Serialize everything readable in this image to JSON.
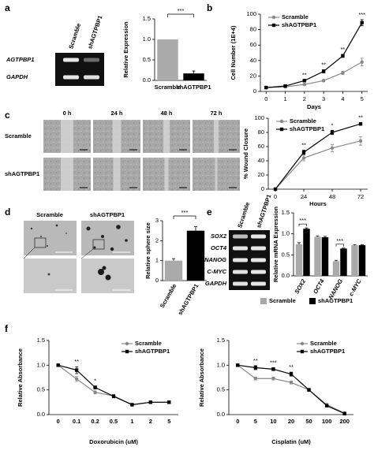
{
  "panels": {
    "a": {
      "letter": "a",
      "gel_columns": [
        "Scramble",
        "shAGTPBP1"
      ],
      "gel_rows": [
        "AGTPBP1",
        "GAPDH"
      ]
    },
    "b": {
      "letter": "b"
    },
    "c": {
      "letter": "c",
      "columns": [
        "0 h",
        "24 h",
        "48 h",
        "72 h"
      ],
      "rows": [
        "Scramble",
        "shAGTPBP1"
      ]
    },
    "d": {
      "letter": "d",
      "columns": [
        "Scramble",
        "shAGTPBP1"
      ]
    },
    "e": {
      "letter": "e",
      "gel_columns": [
        "Scramble",
        "shAGTPBP1"
      ],
      "gel_rows": [
        "SOX2",
        "OCT4",
        "NANOG",
        "C-MYC",
        "GAPDH"
      ]
    },
    "f": {
      "letter": "f"
    }
  },
  "chart_data": [
    {
      "type": "bar",
      "y_label": "Relative Expression",
      "categories": [
        "Scramble",
        "shAGTPBP1"
      ],
      "values": [
        1.0,
        0.17
      ],
      "errors": [
        null,
        0.06
      ],
      "colors": [
        "#aaaaaa",
        "#000000"
      ],
      "ylim": [
        0,
        1.5
      ],
      "yticks": [
        {
          "value": 0,
          "label": "0.0"
        },
        0.5,
        {
          "value": 1,
          "label": "1.0"
        },
        1.5
      ],
      "annotation": "***"
    },
    {
      "type": "line",
      "x_label": "Days",
      "y_label": "Cell Number (1E+4)",
      "x": [
        0,
        1,
        2,
        3,
        4,
        5
      ],
      "xlim": [
        -0.3,
        5.3
      ],
      "xticks": [
        0,
        1,
        2,
        3,
        4,
        5
      ],
      "ylim": [
        0,
        100
      ],
      "yticks": [
        0,
        20,
        40,
        60,
        80,
        100
      ],
      "legend": "upper left",
      "series": [
        {
          "name": "Scramble",
          "color": "#888888",
          "marker": "circle",
          "values": [
            5,
            6,
            9,
            14,
            24,
            38
          ],
          "errors": [
            null,
            null,
            1,
            1.5,
            2,
            5
          ]
        },
        {
          "name": "shAGTPBP1",
          "color": "#000000",
          "marker": "square",
          "values": [
            5,
            7,
            14,
            26,
            46,
            89
          ],
          "errors": [
            null,
            null,
            1,
            2,
            2,
            4
          ]
        }
      ],
      "annotations": [
        null,
        null,
        "**",
        "**",
        "**",
        "***"
      ]
    },
    {
      "type": "line",
      "x_label": "Hours",
      "y_label": "% Wound Closure",
      "x": [
        0,
        24,
        48,
        72
      ],
      "xlim": [
        -6,
        78
      ],
      "xticks": [
        0,
        24,
        48,
        72
      ],
      "ylim": [
        0,
        100
      ],
      "yticks": [
        0,
        20,
        40,
        60,
        80,
        100
      ],
      "legend": "upper left",
      "series": [
        {
          "name": "Scramble",
          "color": "#888888",
          "marker": "circle",
          "values": [
            0,
            44,
            58,
            68
          ],
          "errors": [
            null,
            4,
            5,
            6
          ]
        },
        {
          "name": "shAGTPBP1",
          "color": "#000000",
          "marker": "square",
          "values": [
            0,
            52,
            80,
            92
          ],
          "errors": [
            null,
            3,
            3,
            2
          ]
        }
      ],
      "annotations": [
        null,
        "**",
        "*",
        "**"
      ]
    },
    {
      "type": "bar",
      "y_label": "Relative sphere size",
      "categories": [
        "Scramble",
        "shAGTPBP1"
      ],
      "values": [
        1.0,
        2.5
      ],
      "errors": [
        0.1,
        0.2
      ],
      "colors": [
        "#aaaaaa",
        "#000000"
      ],
      "ylim": [
        0,
        3
      ],
      "yticks": [
        0,
        1,
        2,
        3
      ],
      "annotation": "***"
    },
    {
      "type": "grouped_bar",
      "y_label": "Relative mRNA Expression",
      "categories": [
        "SOX2",
        "OCT4",
        "NANOG",
        "c-MYC"
      ],
      "ylim": [
        0,
        1.5
      ],
      "yticks": [
        {
          "value": 0,
          "label": "0.0"
        },
        0.5,
        {
          "value": 1,
          "label": "1.0"
        },
        1.5
      ],
      "legend": "lower center",
      "series": [
        {
          "name": "Scramble",
          "color": "#aaaaaa",
          "values": [
            0.75,
            0.93,
            0.35,
            0.73
          ],
          "errors": [
            0.04,
            0.02,
            0.02,
            0.01
          ]
        },
        {
          "name": "shAGTPBP1",
          "color": "#000000",
          "values": [
            1.12,
            0.92,
            0.65,
            0.73
          ],
          "errors": [
            0.02,
            0.02,
            0.01,
            0.01
          ]
        }
      ],
      "annotations": [
        "***",
        null,
        "***",
        null
      ]
    },
    {
      "type": "line",
      "x_label": "Doxorubicin (uM)",
      "y_label": "Relative Absorbance",
      "categories": [
        "0",
        "0.1",
        "0.2",
        "0.5",
        "1",
        "2",
        "5"
      ],
      "ylim": [
        0,
        1.5
      ],
      "yticks": [
        {
          "value": 0,
          "label": "0.0"
        },
        0.5,
        {
          "value": 1,
          "label": "1.0"
        },
        1.5
      ],
      "legend": "upper right",
      "series": [
        {
          "name": "Scramble",
          "color": "#888888",
          "marker": "circle",
          "values": [
            1.0,
            0.72,
            0.45,
            0.38,
            0.2,
            0.25,
            0.25
          ],
          "errors": [
            null,
            0.05,
            0.03,
            0.03,
            0.02,
            0.02,
            0.02
          ]
        },
        {
          "name": "shAGTPBP1",
          "color": "#000000",
          "marker": "square",
          "values": [
            1.0,
            0.9,
            0.55,
            0.37,
            0.2,
            0.25,
            0.25
          ],
          "errors": [
            null,
            0.07,
            0.03,
            0.03,
            0.02,
            0.02,
            0.02
          ]
        }
      ],
      "annotations": [
        null,
        "**",
        "*",
        null,
        null,
        null,
        null
      ]
    },
    {
      "type": "line",
      "x_label": "Cisplatin (uM)",
      "y_label": "Relative Absorbance",
      "categories": [
        "0",
        "5",
        "10",
        "20",
        "50",
        "100",
        "200"
      ],
      "ylim": [
        0,
        1.5
      ],
      "yticks": [
        {
          "value": 0,
          "label": "0.0"
        },
        0.5,
        {
          "value": 1,
          "label": "1.0"
        },
        1.5
      ],
      "legend": "upper right",
      "series": [
        {
          "name": "Scramble",
          "color": "#888888",
          "marker": "circle",
          "values": [
            1.0,
            0.73,
            0.73,
            0.65,
            0.5,
            0.2,
            0.03
          ],
          "errors": [
            null,
            0.03,
            0.03,
            0.03,
            0.03,
            0.02,
            0.01
          ]
        },
        {
          "name": "shAGTPBP1",
          "color": "#000000",
          "marker": "square",
          "values": [
            1.0,
            0.95,
            0.92,
            0.82,
            0.5,
            0.18,
            0.02
          ],
          "errors": [
            null,
            0.04,
            0.03,
            0.04,
            0.03,
            0.02,
            0.01
          ]
        }
      ],
      "annotations": [
        null,
        "**",
        "***",
        "**",
        null,
        null,
        null
      ]
    }
  ]
}
